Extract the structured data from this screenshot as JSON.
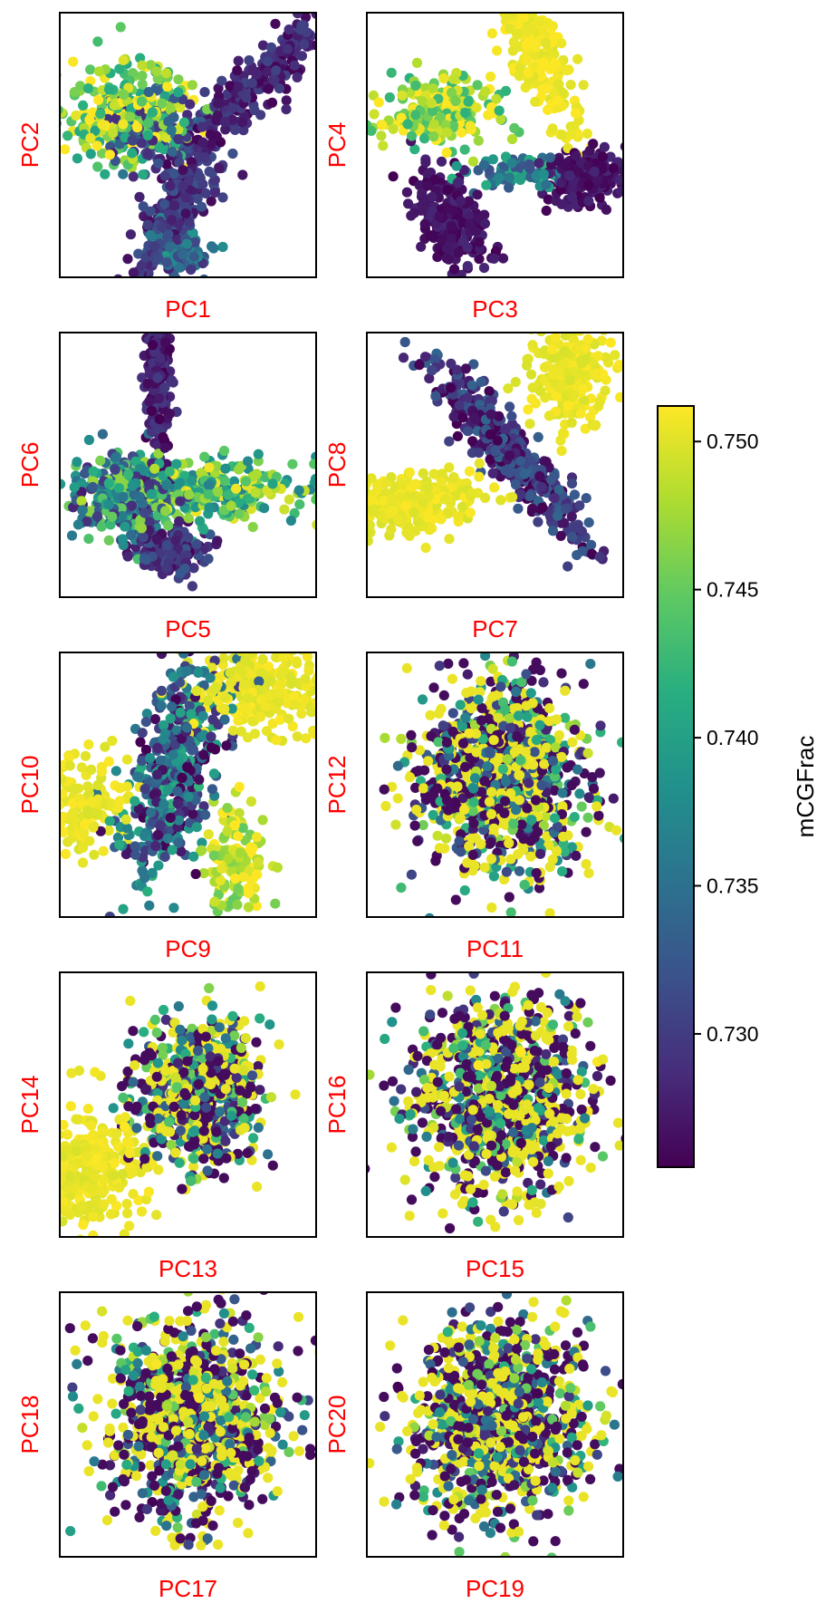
{
  "chart_data": {
    "type": "scatter",
    "panels": [
      {
        "xlabel": "PC1",
        "ylabel": "PC2",
        "shape": "pc12"
      },
      {
        "xlabel": "PC3",
        "ylabel": "PC4",
        "shape": "pc34"
      },
      {
        "xlabel": "PC5",
        "ylabel": "PC6",
        "shape": "pc56"
      },
      {
        "xlabel": "PC7",
        "ylabel": "PC8",
        "shape": "pc78"
      },
      {
        "xlabel": "PC9",
        "ylabel": "PC10",
        "shape": "pc910"
      },
      {
        "xlabel": "PC11",
        "ylabel": "PC12",
        "shape": "blob"
      },
      {
        "xlabel": "PC13",
        "ylabel": "PC14",
        "shape": "pc1314"
      },
      {
        "xlabel": "PC15",
        "ylabel": "PC16",
        "shape": "blob"
      },
      {
        "xlabel": "PC17",
        "ylabel": "PC18",
        "shape": "blob"
      },
      {
        "xlabel": "PC19",
        "ylabel": "PC20",
        "shape": "blob"
      }
    ],
    "axis_ticks": false,
    "grid": false,
    "point_count_per_panel": 1000,
    "colorbar": {
      "label": "mCGFrac",
      "colormap": "viridis",
      "range": [
        0.7255,
        0.7512
      ],
      "ticks": [
        0.73,
        0.735,
        0.74,
        0.745,
        0.75
      ],
      "tick_labels": [
        "0.730",
        "0.735",
        "0.740",
        "0.745",
        "0.750"
      ]
    },
    "colors": {
      "axis_label": "#ff0000",
      "viridis_low": "#440154",
      "viridis_mid": "#21918c",
      "viridis_high": "#fde725"
    }
  }
}
